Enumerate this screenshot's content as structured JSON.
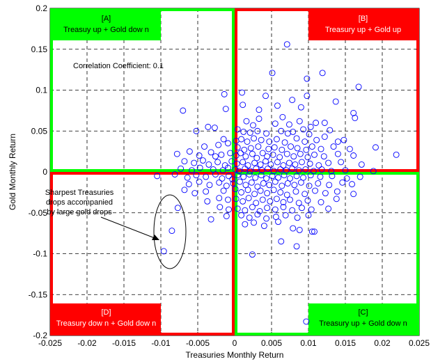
{
  "chart_data": {
    "type": "scatter",
    "title": "",
    "xlabel": "Treasuries Monthly Return",
    "ylabel": "Gold Monthly Return",
    "xlim": [
      -0.025,
      0.025
    ],
    "ylim": [
      -0.2,
      0.2
    ],
    "x_ticks": [
      "-0.025",
      "-0.02",
      "-0.015",
      "-0.01",
      "-0.005",
      "0",
      "0.005",
      "0.01",
      "0.015",
      "0.02",
      "0.025"
    ],
    "y_ticks": [
      "0.2",
      "0.15",
      "0.1",
      "0.05",
      "0",
      "-0.05",
      "-0.1",
      "-0.15",
      "-0.2"
    ],
    "grid": true,
    "marker_color": "#0000ff",
    "correlation_text": "Correlation Coefficient: 0.1",
    "quadrants": {
      "A": {
        "tag": "[A]",
        "label": "Treasuy up + Gold dow n",
        "color": "#00ff00"
      },
      "B": {
        "tag": "[B]",
        "label": "Treasury up + Gold up",
        "color": "#ff0000"
      },
      "C": {
        "tag": "[C]",
        "label": "Treasury up + Gold dow n",
        "color": "#00ff00"
      },
      "D": {
        "tag": "[D]",
        "label": "Treasury dow n + Gold dow n",
        "color": "#ff0000"
      }
    },
    "callout_lines": [
      "Sharpest Treasuries",
      "drops accompanied",
      "by large gold drops"
    ],
    "points": [
      [
        0.0071,
        0.156
      ],
      [
        0.0051,
        0.121
      ],
      [
        0.0119,
        0.121
      ],
      [
        0.0168,
        0.104
      ],
      [
        0.0098,
        0.114
      ],
      [
        0.001,
        0.097
      ],
      [
        0.0042,
        0.093
      ],
      [
        0.0098,
        0.093
      ],
      [
        0.0078,
        0.088
      ],
      [
        0.0011,
        0.082
      ],
      [
        0.0058,
        0.081
      ],
      [
        -0.0014,
        0.095
      ],
      [
        -0.0012,
        0.077
      ],
      [
        -0.007,
        0.075
      ],
      [
        0.0033,
        0.076
      ],
      [
        0.009,
        0.079
      ],
      [
        0.0137,
        0.086
      ],
      [
        0.0161,
        0.072
      ],
      [
        0.0163,
        0.066
      ],
      [
        0.0065,
        0.067
      ],
      [
        0.0122,
        0.06
      ],
      [
        0.0033,
        0.065
      ],
      [
        0.0016,
        0.062
      ],
      [
        0.0025,
        0.057
      ],
      [
        0.0055,
        0.059
      ],
      [
        0.0074,
        0.058
      ],
      [
        0.0088,
        0.062
      ],
      [
        0.0103,
        0.055
      ],
      [
        0.011,
        0.06
      ],
      [
        0.0129,
        0.051
      ],
      [
        -0.0027,
        0.054
      ],
      [
        -0.0036,
        0.055
      ],
      [
        -0.0052,
        0.05
      ],
      [
        0.0004,
        0.052
      ],
      [
        0.0012,
        0.049
      ],
      [
        0.0021,
        0.048
      ],
      [
        0.0031,
        0.05
      ],
      [
        0.0043,
        0.047
      ],
      [
        0.0063,
        0.05
      ],
      [
        0.0072,
        0.047
      ],
      [
        0.0079,
        0.049
      ],
      [
        0.0093,
        0.052
      ],
      [
        0.0101,
        0.046
      ],
      [
        -0.0015,
        0.04
      ],
      [
        -0.0009,
        0.035
      ],
      [
        0.0002,
        0.038
      ],
      [
        0.0009,
        0.04
      ],
      [
        0.0017,
        0.037
      ],
      [
        0.0026,
        0.041
      ],
      [
        0.0036,
        0.039
      ],
      [
        0.0047,
        0.037
      ],
      [
        0.0057,
        0.04
      ],
      [
        0.0068,
        0.036
      ],
      [
        0.0084,
        0.041
      ],
      [
        0.0095,
        0.037
      ],
      [
        0.0111,
        0.039
      ],
      [
        0.0122,
        0.043
      ],
      [
        0.014,
        0.037
      ],
      [
        0.0148,
        0.039
      ],
      [
        -0.0041,
        0.031
      ],
      [
        -0.0022,
        0.033
      ],
      [
        0.0004,
        0.03
      ],
      [
        0.0013,
        0.027
      ],
      [
        0.0022,
        0.029
      ],
      [
        0.0032,
        0.031
      ],
      [
        0.0046,
        0.028
      ],
      [
        0.0054,
        0.03
      ],
      [
        0.0064,
        0.027
      ],
      [
        0.0076,
        0.031
      ],
      [
        0.0085,
        0.029
      ],
      [
        0.0097,
        0.027
      ],
      [
        0.0105,
        0.031
      ],
      [
        0.0117,
        0.028
      ],
      [
        0.0134,
        0.031
      ],
      [
        0.0156,
        0.028
      ],
      [
        0.0191,
        0.03
      ],
      [
        -0.0078,
        0.022
      ],
      [
        -0.0061,
        0.025
      ],
      [
        -0.0048,
        0.02
      ],
      [
        -0.0032,
        0.024
      ],
      [
        -0.0026,
        0.019
      ],
      [
        -0.0018,
        0.021
      ],
      [
        -0.0006,
        0.023
      ],
      [
        0.0002,
        0.02
      ],
      [
        0.0008,
        0.023
      ],
      [
        0.0015,
        0.019
      ],
      [
        0.0024,
        0.022
      ],
      [
        0.003,
        0.017
      ],
      [
        0.0038,
        0.023
      ],
      [
        0.0044,
        0.019
      ],
      [
        0.0052,
        0.021
      ],
      [
        0.0061,
        0.018
      ],
      [
        0.0071,
        0.022
      ],
      [
        0.008,
        0.019
      ],
      [
        0.0089,
        0.022
      ],
      [
        0.0099,
        0.018
      ],
      [
        0.0108,
        0.021
      ],
      [
        0.0121,
        0.019
      ],
      [
        0.014,
        0.022
      ],
      [
        0.0161,
        0.02
      ],
      [
        0.0219,
        0.021
      ],
      [
        -0.0068,
        0.013
      ],
      [
        -0.0055,
        0.011
      ],
      [
        -0.0043,
        0.014
      ],
      [
        -0.0035,
        0.009
      ],
      [
        -0.0023,
        0.012
      ],
      [
        -0.0013,
        0.008
      ],
      [
        -0.0004,
        0.013
      ],
      [
        0.0003,
        0.01
      ],
      [
        0.0011,
        0.012
      ],
      [
        0.0018,
        0.008
      ],
      [
        0.0027,
        0.011
      ],
      [
        0.0035,
        0.009
      ],
      [
        0.0042,
        0.013
      ],
      [
        0.0049,
        0.009
      ],
      [
        0.0058,
        0.012
      ],
      [
        0.0066,
        0.008
      ],
      [
        0.0074,
        0.011
      ],
      [
        0.0082,
        0.009
      ],
      [
        0.0091,
        0.012
      ],
      [
        0.0102,
        0.01
      ],
      [
        0.0114,
        0.008
      ],
      [
        0.0127,
        0.011
      ],
      [
        0.0144,
        0.012
      ],
      [
        0.0172,
        0.009
      ],
      [
        -0.0073,
        0.004
      ],
      [
        -0.0058,
        0.002
      ],
      [
        -0.0047,
        0.005
      ],
      [
        -0.0029,
        0.003
      ],
      [
        -0.0016,
        0.002
      ],
      [
        -0.0009,
        0.005
      ],
      [
        0.0001,
        0.003
      ],
      [
        0.0006,
        0.001
      ],
      [
        0.0014,
        0.004
      ],
      [
        0.0021,
        0.001
      ],
      [
        0.0029,
        0.004
      ],
      [
        0.0037,
        0.002
      ],
      [
        0.0045,
        0.004
      ],
      [
        0.0053,
        0.001
      ],
      [
        0.0062,
        0.003
      ],
      [
        0.007,
        0.002
      ],
      [
        0.0078,
        0.004
      ],
      [
        0.0087,
        0.002
      ],
      [
        0.0096,
        0.003
      ],
      [
        0.0107,
        0.001
      ],
      [
        0.0118,
        0.003
      ],
      [
        0.0131,
        0.001
      ],
      [
        0.015,
        0.002
      ],
      [
        0.0188,
        0.001
      ],
      [
        -0.0105,
        -0.005
      ],
      [
        -0.0081,
        -0.003
      ],
      [
        -0.0064,
        -0.007
      ],
      [
        -0.0052,
        -0.004
      ],
      [
        -0.0039,
        -0.006
      ],
      [
        -0.0026,
        -0.003
      ],
      [
        -0.0017,
        -0.008
      ],
      [
        -0.0008,
        -0.005
      ],
      [
        -0.0003,
        -0.009
      ],
      [
        0.0004,
        -0.004
      ],
      [
        0.0012,
        -0.006
      ],
      [
        0.002,
        -0.003
      ],
      [
        0.0028,
        -0.007
      ],
      [
        0.0036,
        -0.004
      ],
      [
        0.0043,
        -0.008
      ],
      [
        0.0051,
        -0.005
      ],
      [
        0.0059,
        -0.007
      ],
      [
        0.0067,
        -0.004
      ],
      [
        0.0075,
        -0.008
      ],
      [
        0.0084,
        -0.005
      ],
      [
        0.0093,
        -0.007
      ],
      [
        0.0103,
        -0.004
      ],
      [
        0.0116,
        -0.006
      ],
      [
        0.0132,
        -0.005
      ],
      [
        0.0152,
        -0.008
      ],
      [
        0.017,
        -0.006
      ],
      [
        -0.0062,
        -0.015
      ],
      [
        -0.0048,
        -0.012
      ],
      [
        -0.0034,
        -0.016
      ],
      [
        -0.0021,
        -0.013
      ],
      [
        -0.0011,
        -0.017
      ],
      [
        -0.0002,
        -0.014
      ],
      [
        0.0007,
        -0.012
      ],
      [
        0.0015,
        -0.016
      ],
      [
        0.0023,
        -0.013
      ],
      [
        0.0031,
        -0.018
      ],
      [
        0.0039,
        -0.014
      ],
      [
        0.0047,
        -0.016
      ],
      [
        0.0055,
        -0.012
      ],
      [
        0.0064,
        -0.017
      ],
      [
        0.0072,
        -0.014
      ],
      [
        0.0081,
        -0.016
      ],
      [
        0.009,
        -0.013
      ],
      [
        0.0101,
        -0.017
      ],
      [
        0.0113,
        -0.014
      ],
      [
        0.0128,
        -0.016
      ],
      [
        0.0146,
        -0.013
      ],
      [
        0.0159,
        -0.015
      ],
      [
        -0.0068,
        -0.022
      ],
      [
        -0.0054,
        -0.026
      ],
      [
        -0.0039,
        -0.024
      ],
      [
        -0.0015,
        -0.023
      ],
      [
        0.0001,
        -0.021
      ],
      [
        0.0009,
        -0.025
      ],
      [
        0.0018,
        -0.022
      ],
      [
        0.0027,
        -0.027
      ],
      [
        0.0035,
        -0.023
      ],
      [
        0.0044,
        -0.026
      ],
      [
        0.0053,
        -0.022
      ],
      [
        0.0062,
        -0.025
      ],
      [
        0.0071,
        -0.028
      ],
      [
        0.0083,
        -0.024
      ],
      [
        0.0095,
        -0.027
      ],
      [
        0.0109,
        -0.023
      ],
      [
        0.0123,
        -0.026
      ],
      [
        0.0139,
        -0.024
      ],
      [
        0.0161,
        -0.027
      ],
      [
        -0.0037,
        -0.036
      ],
      [
        -0.0021,
        -0.032
      ],
      [
        -0.0009,
        -0.034
      ],
      [
        0.0002,
        -0.033
      ],
      [
        0.0011,
        -0.036
      ],
      [
        0.0019,
        -0.032
      ],
      [
        0.0029,
        -0.038
      ],
      [
        0.0038,
        -0.034
      ],
      [
        0.0048,
        -0.036
      ],
      [
        0.0057,
        -0.033
      ],
      [
        0.0066,
        -0.037
      ],
      [
        0.0075,
        -0.034
      ],
      [
        0.0087,
        -0.038
      ],
      [
        0.0099,
        -0.035
      ],
      [
        0.0117,
        -0.037
      ],
      [
        0.0138,
        -0.033
      ],
      [
        -0.002,
        -0.043
      ],
      [
        -0.0008,
        -0.046
      ],
      [
        0.0004,
        -0.045
      ],
      [
        0.0014,
        -0.047
      ],
      [
        0.0024,
        -0.043
      ],
      [
        0.0034,
        -0.048
      ],
      [
        0.0044,
        -0.044
      ],
      [
        0.0055,
        -0.046
      ],
      [
        0.0066,
        -0.043
      ],
      [
        0.0078,
        -0.047
      ],
      [
        0.0091,
        -0.044
      ],
      [
        0.0104,
        -0.046
      ],
      [
        0.0127,
        -0.045
      ],
      [
        -0.0011,
        -0.054
      ],
      [
        -0.0032,
        -0.058
      ],
      [
        0.0009,
        -0.053
      ],
      [
        0.002,
        -0.056
      ],
      [
        0.0031,
        -0.052
      ],
      [
        0.0043,
        -0.057
      ],
      [
        0.0056,
        -0.055
      ],
      [
        0.0069,
        -0.053
      ],
      [
        0.0085,
        -0.056
      ],
      [
        0.01,
        -0.053
      ],
      [
        0.0014,
        -0.064
      ],
      [
        0.0026,
        -0.062
      ],
      [
        0.004,
        -0.066
      ],
      [
        0.0059,
        -0.061
      ],
      [
        0.0079,
        -0.069
      ],
      [
        0.0088,
        -0.071
      ],
      [
        0.0105,
        -0.073
      ],
      [
        0.0108,
        -0.073
      ],
      [
        0.0063,
        -0.085
      ],
      [
        0.0024,
        -0.101
      ],
      [
        0.0084,
        -0.091
      ],
      [
        -0.0077,
        -0.044
      ],
      [
        -0.0085,
        -0.072
      ],
      [
        -0.0096,
        -0.097
      ],
      [
        0.0097,
        -0.183
      ]
    ]
  }
}
